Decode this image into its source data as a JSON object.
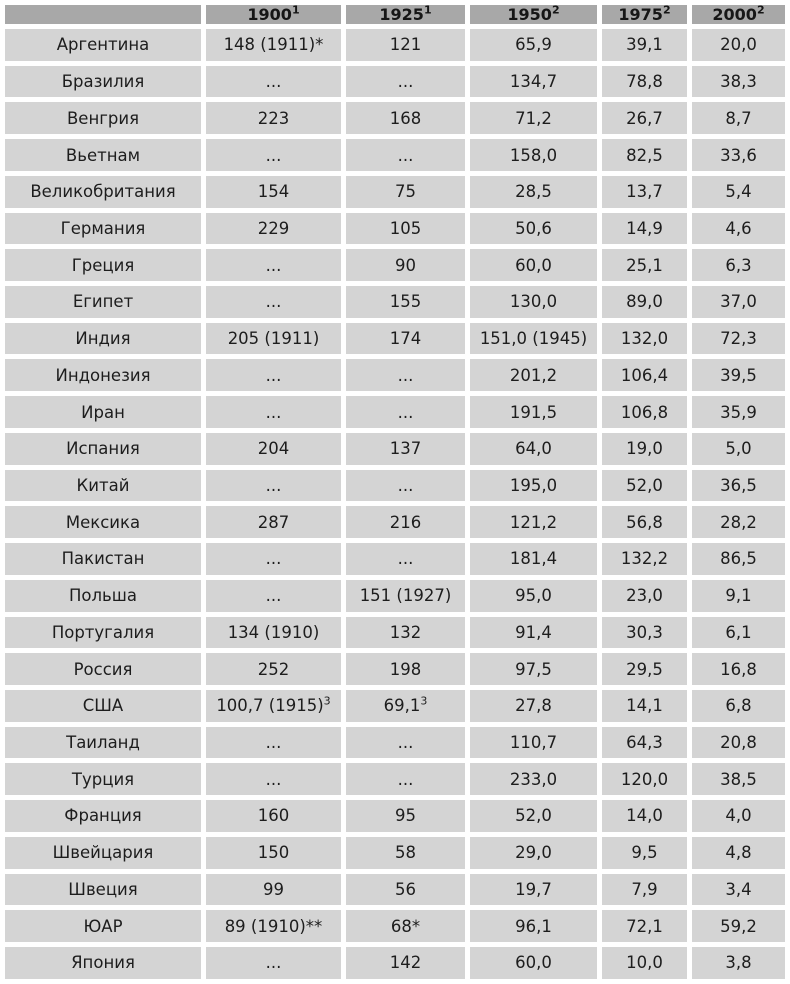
{
  "table": {
    "description": "Statistical table: indicator by country for years 1900-2000, Russian labels, comma decimal separators",
    "columns": [
      {
        "label": "",
        "sup": ""
      },
      {
        "label": "1900",
        "sup": "1"
      },
      {
        "label": "1925",
        "sup": "1"
      },
      {
        "label": "1950",
        "sup": "2"
      },
      {
        "label": "1975",
        "sup": "2"
      },
      {
        "label": "2000",
        "sup": "2"
      }
    ],
    "rows": [
      {
        "country": "Аргентина",
        "values": [
          "148 (1911)*",
          "121",
          "65,9",
          "39,1",
          "20,0"
        ]
      },
      {
        "country": "Бразилия",
        "values": [
          "...",
          "...",
          "134,7",
          "78,8",
          "38,3"
        ]
      },
      {
        "country": "Венгрия",
        "values": [
          "223",
          "168",
          "71,2",
          "26,7",
          "8,7"
        ]
      },
      {
        "country": "Вьетнам",
        "values": [
          "...",
          "...",
          "158,0",
          "82,5",
          "33,6"
        ]
      },
      {
        "country": "Великобритания",
        "values": [
          "154",
          "75",
          "28,5",
          "13,7",
          "5,4"
        ]
      },
      {
        "country": "Германия",
        "values": [
          "229",
          "105",
          "50,6",
          "14,9",
          "4,6"
        ]
      },
      {
        "country": "Греция",
        "values": [
          "...",
          "90",
          "60,0",
          "25,1",
          "6,3"
        ]
      },
      {
        "country": "Египет",
        "values": [
          "...",
          "155",
          "130,0",
          "89,0",
          "37,0"
        ]
      },
      {
        "country": "Индия",
        "values": [
          "205 (1911)",
          "174",
          "151,0 (1945)",
          "132,0",
          "72,3"
        ]
      },
      {
        "country": "Индонезия",
        "values": [
          "...",
          "...",
          "201,2",
          "106,4",
          "39,5"
        ]
      },
      {
        "country": "Иран",
        "values": [
          "...",
          "...",
          "191,5",
          "106,8",
          "35,9"
        ]
      },
      {
        "country": "Испания",
        "values": [
          "204",
          "137",
          "64,0",
          "19,0",
          "5,0"
        ]
      },
      {
        "country": "Китай",
        "values": [
          "...",
          "...",
          "195,0",
          "52,0",
          "36,5"
        ]
      },
      {
        "country": "Мексика",
        "values": [
          "287",
          "216",
          "121,2",
          "56,8",
          "28,2"
        ]
      },
      {
        "country": "Пакистан",
        "values": [
          "...",
          "...",
          "181,4",
          "132,2",
          "86,5"
        ]
      },
      {
        "country": "Польша",
        "values": [
          "...",
          "151 (1927)",
          "95,0",
          "23,0",
          "9,1"
        ]
      },
      {
        "country": "Португалия",
        "values": [
          "134 (1910)",
          "132",
          "91,4",
          "30,3",
          "6,1"
        ]
      },
      {
        "country": "Россия",
        "values": [
          "252",
          "198",
          "97,5",
          "29,5",
          "16,8"
        ]
      },
      {
        "country": "США",
        "values": [
          "100,7 (1915)³",
          "69,1³",
          "27,8",
          "14,1",
          "6,8"
        ]
      },
      {
        "country": "Таиланд",
        "values": [
          "...",
          "...",
          "110,7",
          "64,3",
          "20,8"
        ]
      },
      {
        "country": "Турция",
        "values": [
          "...",
          "...",
          "233,0",
          "120,0",
          "38,5"
        ]
      },
      {
        "country": "Франция",
        "values": [
          "160",
          "95",
          "52,0",
          "14,0",
          "4,0"
        ]
      },
      {
        "country": "Швейцария",
        "values": [
          "150",
          "58",
          "29,0",
          "9,5",
          "4,8"
        ]
      },
      {
        "country": "Швеция",
        "values": [
          "99",
          "56",
          "19,7",
          "7,9",
          "3,4"
        ]
      },
      {
        "country": "ЮАР",
        "values": [
          "89 (1910)**",
          "68*",
          "96,1",
          "72,1",
          "59,2"
        ]
      },
      {
        "country": "Япония",
        "values": [
          "...",
          "142",
          "60,0",
          "10,0",
          "3,8"
        ]
      }
    ]
  },
  "colors": {
    "header_bg": "#a8a8a8",
    "row_bg": "#d4d4d4",
    "gap": "#ffffff",
    "text": "#1d1d1d"
  }
}
